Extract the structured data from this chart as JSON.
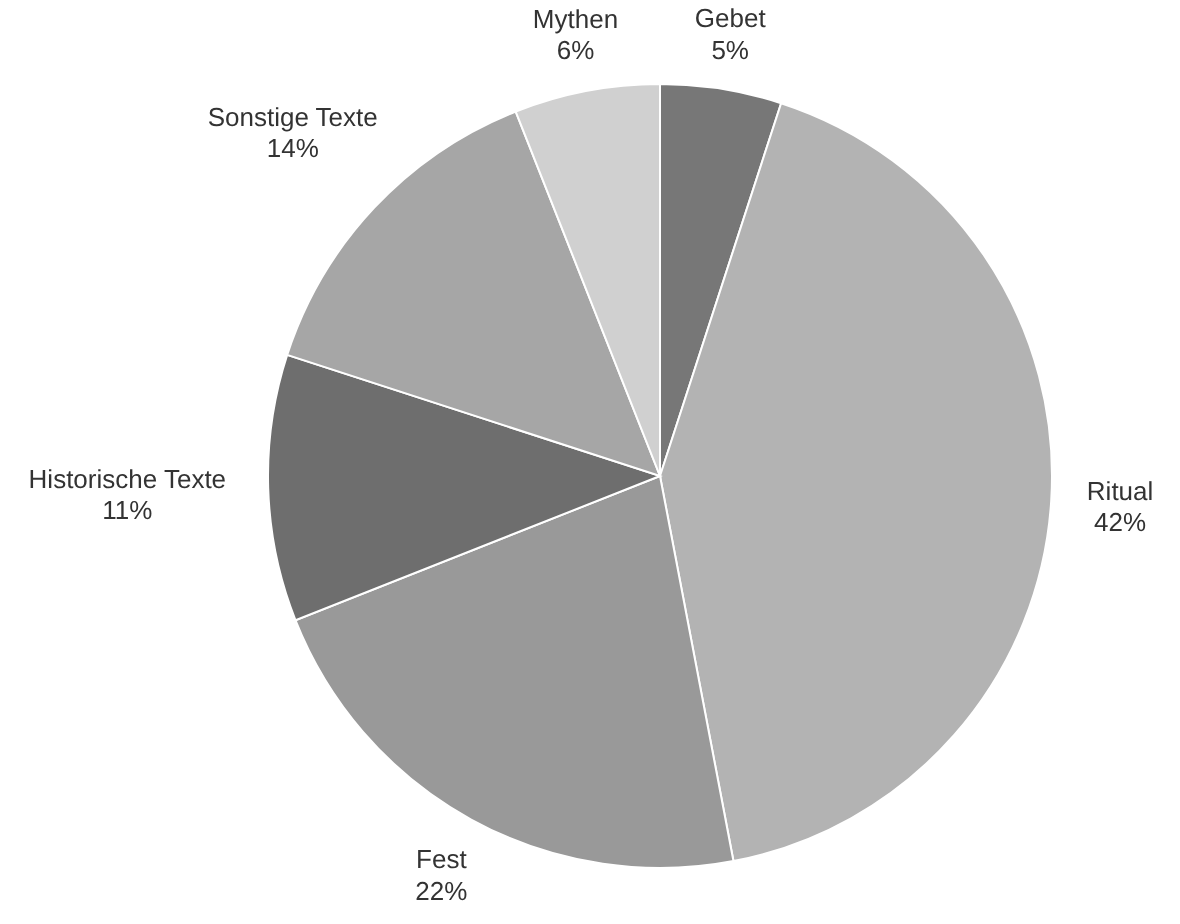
{
  "chart_data": {
    "type": "pie",
    "categories": [
      "Gebet",
      "Ritual",
      "Fest",
      "Historische Texte",
      "Sonstige Texte",
      "Mythen"
    ],
    "values": [
      5,
      42,
      22,
      11,
      14,
      6
    ],
    "colors": [
      "#777777",
      "#b3b3b3",
      "#999999",
      "#6e6e6e",
      "#a6a6a6",
      "#d0d0d0"
    ],
    "value_labels": [
      "5%",
      "42%",
      "22%",
      "11%",
      "14%",
      "6%"
    ]
  }
}
